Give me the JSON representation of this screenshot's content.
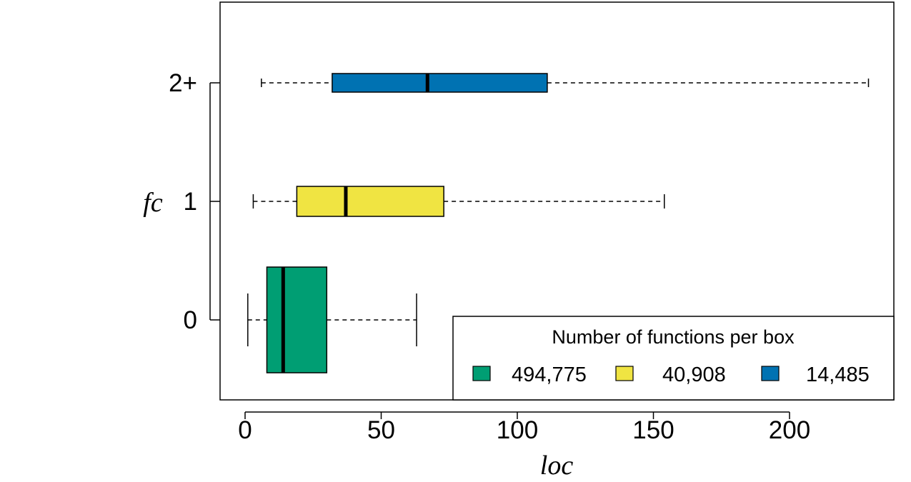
{
  "chart_data": {
    "type": "boxplot",
    "orientation": "horizontal",
    "xlabel": "loc",
    "ylabel": "fc",
    "xlim": [
      -5,
      242
    ],
    "x_ticks": [
      0,
      50,
      100,
      150,
      200
    ],
    "categories": [
      "0",
      "1",
      "2+"
    ],
    "boxes": [
      {
        "category": "0",
        "whisker_low": 1,
        "q1": 8,
        "median": 14,
        "q3": 30,
        "whisker_high": 63,
        "color": "#009E73"
      },
      {
        "category": "1",
        "whisker_low": 3,
        "q1": 19,
        "median": 37,
        "q3": 73,
        "whisker_high": 154,
        "color": "#F0E442"
      },
      {
        "category": "2+",
        "whisker_low": 6,
        "q1": 32,
        "median": 67,
        "q3": 111,
        "whisker_high": 229,
        "color": "#0072B2"
      }
    ],
    "legend": {
      "title": "Number of functions per box",
      "position": "bottom-right",
      "entries": [
        {
          "label": "494,775",
          "color": "#009E73"
        },
        {
          "label": "40,908",
          "color": "#F0E442"
        },
        {
          "label": "14,485",
          "color": "#0072B2"
        }
      ]
    }
  }
}
